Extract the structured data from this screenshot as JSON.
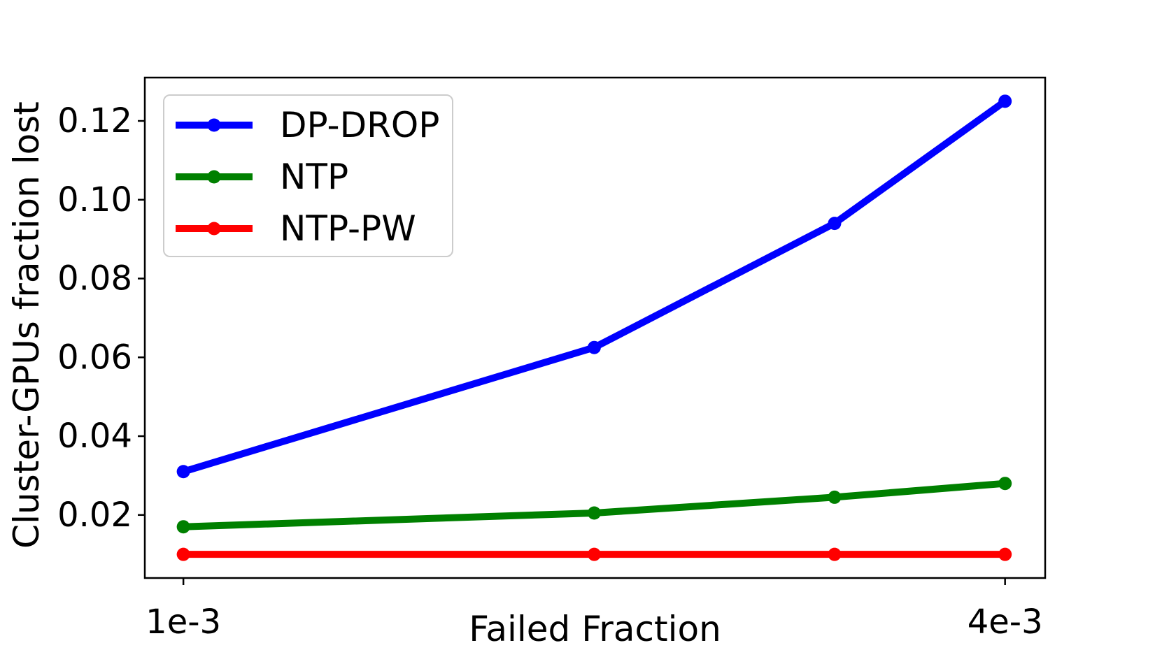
{
  "figure": {
    "background": "#ffffff",
    "text_color": "#000000",
    "spine_color": "#000000",
    "legend_border_color": "#cccccc"
  },
  "chart_data": {
    "type": "line",
    "title": "",
    "xlabel": "Failed Fraction",
    "ylabel": "Cluster-GPUs fraction lost",
    "x_scale": "log",
    "y_scale": "linear",
    "grid": false,
    "x": [
      0.001,
      0.002,
      0.003,
      0.004
    ],
    "series": [
      {
        "name": "DP-DROP",
        "color": "#0000ff",
        "values": [
          0.031,
          0.0625,
          0.094,
          0.125
        ]
      },
      {
        "name": "NTP",
        "color": "#008000",
        "values": [
          0.017,
          0.0205,
          0.0245,
          0.028
        ]
      },
      {
        "name": "NTP-PW",
        "color": "#ff0000",
        "values": [
          0.01,
          0.01,
          0.01,
          0.01
        ]
      }
    ],
    "xticks": {
      "values": [
        0.001,
        0.004
      ],
      "labels": [
        "1e-3",
        "4e-3"
      ]
    },
    "yticks": {
      "values": [
        0.02,
        0.04,
        0.06,
        0.08,
        0.1,
        0.12
      ],
      "labels": [
        "0.02",
        "0.04",
        "0.06",
        "0.08",
        "0.10",
        "0.12"
      ]
    },
    "xlim": [
      0.000937,
      0.00428
    ],
    "ylim": [
      0.004,
      0.131
    ],
    "legend": {
      "position": "upper left",
      "entries": [
        "DP-DROP",
        "NTP",
        "NTP-PW"
      ]
    }
  }
}
